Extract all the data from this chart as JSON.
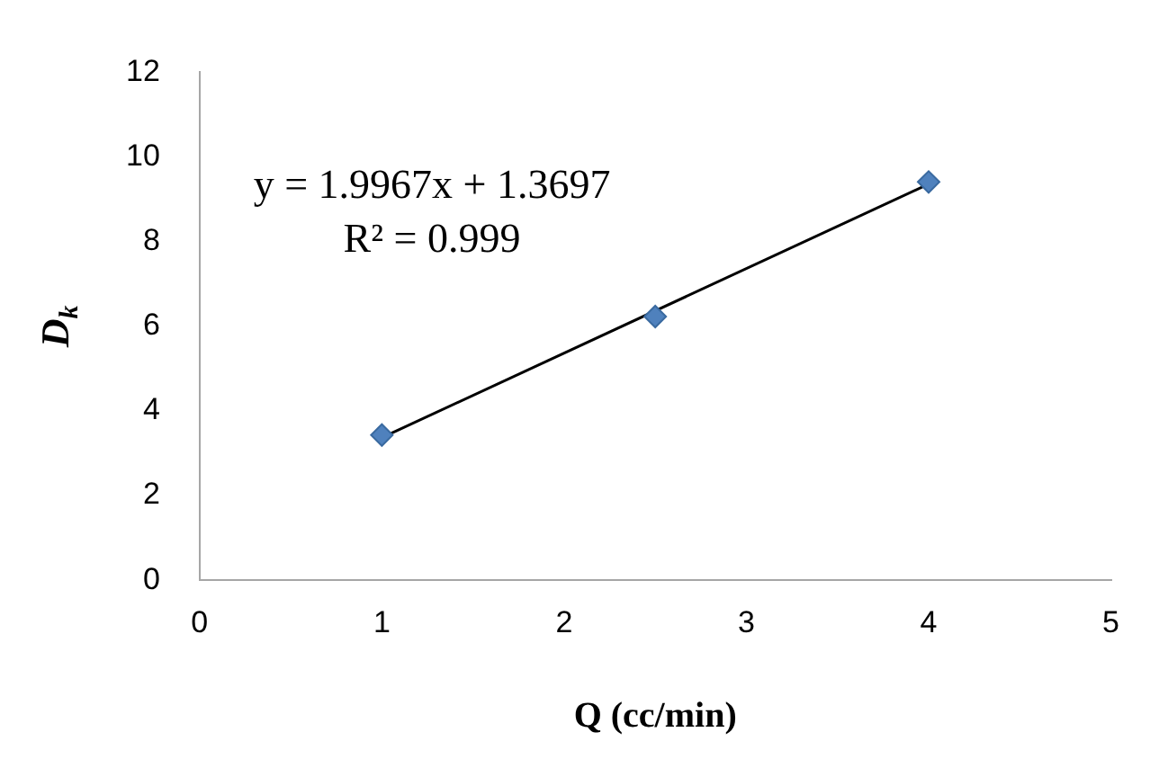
{
  "chart_data": {
    "type": "scatter",
    "xlabel": "Q (cc/min)",
    "ylabel": "D$_{k}$",
    "annotations": [
      "y = 1.9967x + 1.3697",
      "R² = 0.999"
    ],
    "series": [
      {
        "type": "scatter",
        "x": [
          1,
          2.5,
          4
        ],
        "values": [
          3.43,
          6.23,
          9.41
        ],
        "color": "#4f81bd",
        "marker": "diamond"
      },
      {
        "type": "line",
        "x": [
          1,
          4
        ],
        "values": [
          3.37,
          9.36
        ],
        "color": "#000000",
        "marker": "none"
      }
    ],
    "xlim": [
      0,
      5
    ],
    "xticks": [
      0,
      1,
      2,
      3,
      4,
      5
    ],
    "ylim": [
      0,
      12
    ],
    "yticks": [
      0,
      2,
      4,
      6,
      8,
      10,
      12
    ],
    "grid": false,
    "legend": false
  }
}
